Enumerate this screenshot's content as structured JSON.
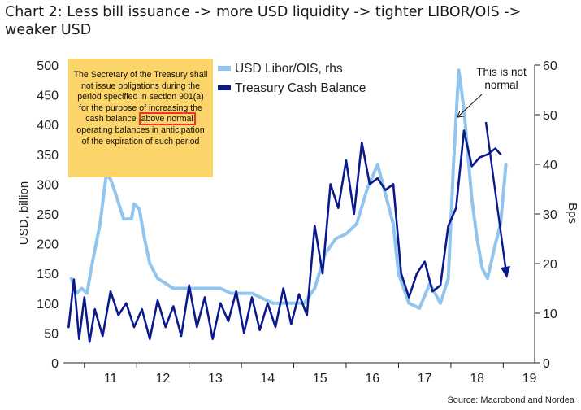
{
  "title": "Chart 2: Less bill issuance -> more USD liquidity -> tighter LIBOR/OIS -> weaker USD",
  "source": "Source: Macrobond and Nordea",
  "quote": {
    "before": "The Secretary of the Treasury shall not issue obligations during the period specified in section 901(a) for the purpose of increasing the cash balance ",
    "highlight": "above normal",
    "after": " operating balances in anticipation of the expiration of such period"
  },
  "annotation": {
    "line1": "This is not",
    "line2": "normal"
  },
  "colors": {
    "libor": "#92c5ee",
    "cash": "#0a1a8c",
    "arrow": "#0a1a8c",
    "quote_bg": "#fbd46a",
    "highlight_border": "#e33333"
  },
  "chart_data": {
    "type": "line",
    "title": "Chart 2: Less bill issuance -> more USD liquidity -> tighter LIBOR/OIS -> weaker USD",
    "ylabel": "USD, billion",
    "y2label": "Bps",
    "ylim": [
      0,
      500
    ],
    "y2lim": [
      0,
      60
    ],
    "yticks": [
      "0",
      "50",
      "100",
      "150",
      "200",
      "250",
      "300",
      "350",
      "400",
      "450",
      "500"
    ],
    "y2ticks": [
      "0",
      "10",
      "20",
      "30",
      "40",
      "50",
      "60"
    ],
    "xlim": [
      2010.6,
      2019.6
    ],
    "xticks": [
      "11",
      "12",
      "13",
      "14",
      "15",
      "16",
      "17",
      "18",
      "19"
    ],
    "legend": "top-center",
    "grid": false,
    "series": [
      {
        "name": "USD Libor/OIS, rhs",
        "axis": "right",
        "x": [
          2010.75,
          2010.85,
          2010.95,
          2011.05,
          2011.15,
          2011.3,
          2011.42,
          2011.5,
          2011.6,
          2011.75,
          2011.9,
          2011.95,
          2012.05,
          2012.15,
          2012.25,
          2012.4,
          2012.55,
          2012.7,
          2012.85,
          2013.0,
          2013.2,
          2013.4,
          2013.6,
          2013.8,
          2014.0,
          2014.2,
          2014.4,
          2014.6,
          2014.8,
          2015.0,
          2015.2,
          2015.4,
          2015.6,
          2015.8,
          2016.0,
          2016.2,
          2016.4,
          2016.6,
          2016.75,
          2016.9,
          2017.0,
          2017.2,
          2017.4,
          2017.6,
          2017.8,
          2017.95,
          2018.05,
          2018.15,
          2018.25,
          2018.4,
          2018.5,
          2018.6,
          2018.7,
          2018.85,
          2018.95,
          2019.05
        ],
        "values": [
          17,
          14,
          15,
          14,
          20,
          28,
          38,
          37,
          34,
          29,
          29,
          32,
          31,
          25,
          20,
          17,
          16,
          15,
          15,
          15,
          15,
          15,
          15,
          14,
          14,
          14,
          13,
          12,
          12,
          12,
          12,
          15,
          22,
          25,
          26,
          28,
          35,
          40,
          34,
          28,
          18,
          12,
          11,
          16,
          12,
          17,
          40,
          59,
          51,
          33,
          25,
          19,
          17,
          24,
          28,
          40
        ]
      },
      {
        "name": "Treasury Cash Balance",
        "axis": "left",
        "x": [
          2010.7,
          2010.8,
          2010.9,
          2011.0,
          2011.1,
          2011.2,
          2011.35,
          2011.5,
          2011.65,
          2011.8,
          2011.95,
          2012.1,
          2012.25,
          2012.4,
          2012.55,
          2012.7,
          2012.85,
          2013.0,
          2013.15,
          2013.3,
          2013.45,
          2013.6,
          2013.75,
          2013.9,
          2014.05,
          2014.2,
          2014.35,
          2014.5,
          2014.65,
          2014.8,
          2014.95,
          2015.1,
          2015.25,
          2015.4,
          2015.55,
          2015.7,
          2015.85,
          2016.0,
          2016.15,
          2016.3,
          2016.45,
          2016.6,
          2016.75,
          2016.9,
          2017.05,
          2017.2,
          2017.35,
          2017.5,
          2017.65,
          2017.8,
          2017.95,
          2018.1,
          2018.25,
          2018.4,
          2018.55,
          2018.7,
          2018.85,
          2018.95
        ],
        "values": [
          60,
          140,
          40,
          110,
          35,
          90,
          45,
          120,
          80,
          100,
          60,
          90,
          40,
          105,
          60,
          95,
          45,
          130,
          60,
          110,
          40,
          100,
          70,
          120,
          50,
          110,
          55,
          100,
          60,
          125,
          65,
          115,
          80,
          230,
          150,
          300,
          260,
          340,
          250,
          370,
          300,
          310,
          290,
          300,
          150,
          110,
          150,
          170,
          120,
          130,
          230,
          260,
          390,
          330,
          345,
          350,
          360,
          350
        ]
      }
    ]
  }
}
